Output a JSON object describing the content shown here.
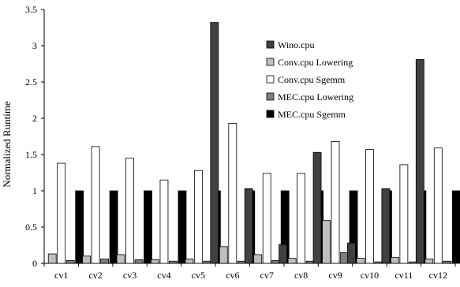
{
  "chart_data": {
    "type": "bar",
    "title": "",
    "xlabel": "",
    "ylabel": "Normalized Runtime",
    "ylim": [
      0,
      3.5
    ],
    "yticks": [
      0,
      0.5,
      1,
      1.5,
      2,
      2.5,
      3,
      3.5
    ],
    "ytick_labels": [
      "0",
      "0.5",
      "1",
      "1.5",
      "2",
      "2.5",
      "3",
      "3.5"
    ],
    "grid": false,
    "legend_position": "top-right",
    "categories": [
      "cv1",
      "cv2",
      "cv3",
      "cv4",
      "cv5",
      "cv6",
      "cv7",
      "cv8",
      "cv9",
      "cv10",
      "cv11",
      "cv12"
    ],
    "series": [
      {
        "name": "Wino.cpu",
        "color": "#404040",
        "values": [
          0,
          0,
          0,
          0,
          0,
          3.32,
          1.03,
          0.26,
          1.53,
          0.28,
          1.03,
          2.81
        ]
      },
      {
        "name": "Conv.cpu Lowering",
        "color": "#bfbfbf",
        "values": [
          0.13,
          0.1,
          0.12,
          0.05,
          0.06,
          0.23,
          0.12,
          0.07,
          0.59,
          0.07,
          0.08,
          0.06
        ]
      },
      {
        "name": "Conv.cpu Sgemm",
        "color": "#ffffff",
        "values": [
          1.38,
          1.61,
          1.45,
          1.15,
          1.28,
          1.93,
          1.24,
          1.24,
          1.68,
          1.57,
          1.36,
          1.59
        ]
      },
      {
        "name": "MEC.cpu Lowering",
        "color": "#7f7f7f",
        "values": [
          0.04,
          0.06,
          0.05,
          0.03,
          0.03,
          0.03,
          0.04,
          0.03,
          0.15,
          0.02,
          0.02,
          0.03
        ]
      },
      {
        "name": "MEC.cpu Sgemm",
        "color": "#000000",
        "values": [
          1,
          1,
          1,
          1,
          1,
          1,
          1,
          1,
          1,
          1,
          1,
          1
        ]
      }
    ]
  }
}
